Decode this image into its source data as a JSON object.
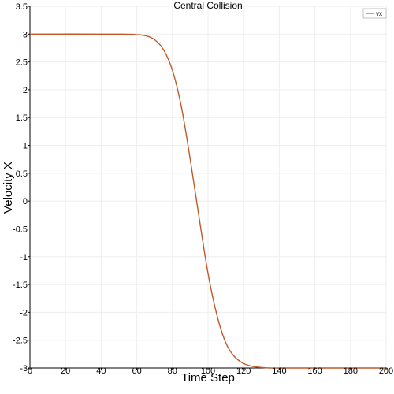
{
  "chart_data": {
    "type": "line",
    "title": "Central Collision",
    "xlabel": "Time Step",
    "ylabel": "Velocity X",
    "xlim": [
      0,
      200
    ],
    "ylim": [
      -3,
      3.5
    ],
    "xticks": [
      "0",
      "20",
      "40",
      "60",
      "80",
      "100",
      "120",
      "140",
      "160",
      "180",
      "200"
    ],
    "yticks": [
      "-3",
      "-2.5",
      "-2",
      "-1.5",
      "-1",
      "-0.5",
      "0",
      "0.5",
      "1",
      "1.5",
      "2",
      "2.5",
      "3",
      "3.5"
    ],
    "grid": true,
    "legend_position": "top-right",
    "series": [
      {
        "name": "vx",
        "color": "#c0582a",
        "x": [
          0,
          50,
          60,
          65,
          70,
          75,
          80,
          85,
          90,
          95,
          100,
          105,
          110,
          115,
          120,
          125,
          130,
          135,
          140,
          150,
          200
        ],
        "y": [
          3,
          3,
          2.99,
          2.97,
          2.9,
          2.72,
          2.35,
          1.7,
          0.75,
          -0.3,
          -1.3,
          -2.05,
          -2.55,
          -2.8,
          -2.92,
          -2.97,
          -2.99,
          -3,
          -3,
          -3,
          -3
        ]
      }
    ]
  }
}
